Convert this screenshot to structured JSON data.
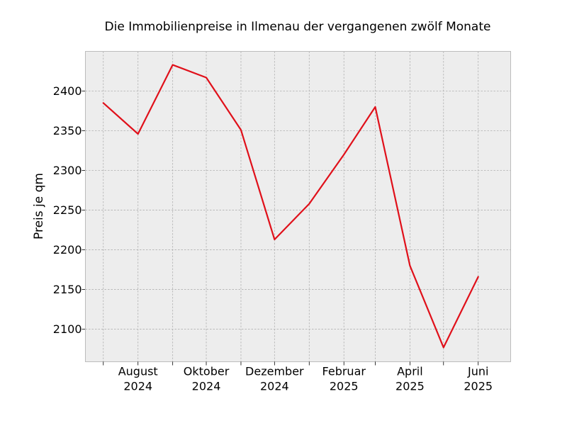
{
  "chart_data": {
    "type": "line",
    "title": "Die Immobilienpreise in Ilmenau der vergangenen zwölf Monate",
    "xlabel": "",
    "ylabel": "Preis je qm",
    "x": [
      "2024-07",
      "2024-08",
      "2024-09",
      "2024-10",
      "2024-11",
      "2024-12",
      "2025-01",
      "2025-02",
      "2025-03",
      "2025-04",
      "2025-05",
      "2025-06"
    ],
    "series": [
      {
        "values": [
          2385,
          2346,
          2433,
          2417,
          2351,
          2213,
          2258,
          2320,
          2380,
          2180,
          2077,
          2166
        ]
      }
    ],
    "xlim": [
      "2024-06-15",
      "2025-06-30"
    ],
    "ylim": [
      2059,
      2450
    ],
    "yticks": [
      2100,
      2150,
      2200,
      2250,
      2300,
      2350,
      2400
    ],
    "xticks_labeled": [
      {
        "x": "2024-08",
        "line1": "August",
        "line2": "2024"
      },
      {
        "x": "2024-10",
        "line1": "Oktober",
        "line2": "2024"
      },
      {
        "x": "2024-12",
        "line1": "Dezember",
        "line2": "2024"
      },
      {
        "x": "2025-02",
        "line1": "Februar",
        "line2": "2025"
      },
      {
        "x": "2025-04",
        "line1": "April",
        "line2": "2025"
      },
      {
        "x": "2025-06",
        "line1": "Juni",
        "line2": "2025"
      }
    ],
    "xticks_minor": [
      "2024-07",
      "2024-09",
      "2024-11",
      "2025-01",
      "2025-03",
      "2025-05"
    ],
    "grid": true,
    "legend": "none",
    "colors": {
      "line": "#e0101a",
      "plot_background": "#ededed",
      "grid": "#b0b0b0",
      "frame": "#bcbcbc"
    }
  }
}
